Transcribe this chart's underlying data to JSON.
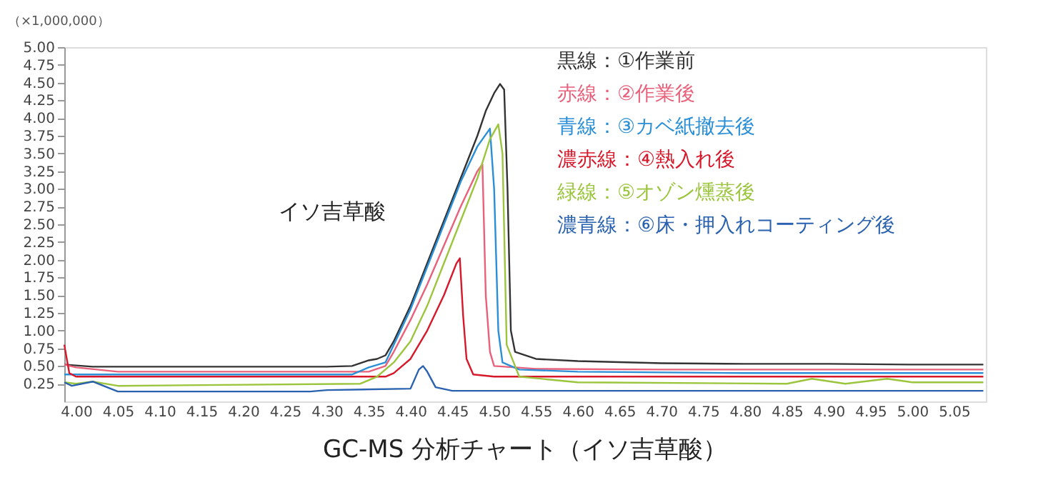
{
  "chart_data": {
    "type": "line",
    "title": "GC-MS 分析チャート（イソ吉草酸）",
    "ylabel": "（×1,000,000）",
    "annotations": [
      "イソ吉草酸"
    ],
    "xlim": [
      3.986,
      5.088
    ],
    "ylim": [
      0,
      5.0
    ],
    "xticks": [
      {
        "value": 4.0,
        "label": "4.00"
      },
      4.05,
      {
        "value": 4.1,
        "label": "4.10"
      },
      4.15,
      {
        "value": 4.2,
        "label": "4.20"
      },
      4.25,
      {
        "value": 4.3,
        "label": "4.30"
      },
      4.35,
      {
        "value": 4.4,
        "label": "4.40"
      },
      4.45,
      {
        "value": 4.5,
        "label": "4.50"
      },
      4.55,
      {
        "value": 4.6,
        "label": "4.60"
      },
      4.65,
      {
        "value": 4.7,
        "label": "4.70"
      },
      4.75,
      {
        "value": 4.8,
        "label": "4.80"
      },
      4.85,
      {
        "value": 4.9,
        "label": "4.90"
      },
      4.95,
      {
        "value": 5.0,
        "label": "5.00"
      },
      5.05
    ],
    "yticks": [
      0.25,
      {
        "value": 0.5,
        "label": "0.50"
      },
      0.75,
      {
        "value": 1.0,
        "label": "1.00"
      },
      1.25,
      {
        "value": 1.5,
        "label": "1.50"
      },
      1.75,
      {
        "value": 2.0,
        "label": "2.00"
      },
      2.25,
      {
        "value": 2.5,
        "label": "2.50"
      },
      2.75,
      {
        "value": 3.0,
        "label": "3.00"
      },
      3.25,
      {
        "value": 3.5,
        "label": "3.50"
      },
      3.75,
      {
        "value": 4.0,
        "label": "4.00"
      },
      4.25,
      {
        "value": 4.5,
        "label": "4.50"
      },
      4.75,
      {
        "value": 5.0,
        "label": "5.00"
      }
    ],
    "grid": false,
    "legend": "top right",
    "marker": "none",
    "line_style": "solid",
    "series": [
      {
        "name": "黒線：①作業前",
        "color": "#333333",
        "x": [
          3.986,
          4.02,
          4.3,
          4.33,
          4.35,
          4.36,
          4.37,
          4.38,
          4.4,
          4.42,
          4.44,
          4.46,
          4.48,
          4.49,
          4.5,
          4.507,
          4.512,
          4.516,
          4.52,
          4.525,
          4.55,
          4.6,
          4.7,
          4.8,
          4.9,
          5.0,
          5.085
        ],
        "values": [
          0.52,
          0.49,
          0.49,
          0.5,
          0.58,
          0.6,
          0.65,
          0.85,
          1.35,
          1.95,
          2.55,
          3.15,
          3.75,
          4.1,
          4.35,
          4.48,
          4.4,
          3.0,
          1.0,
          0.7,
          0.6,
          0.57,
          0.54,
          0.53,
          0.53,
          0.52,
          0.52
        ]
      },
      {
        "name": "赤線：②作業後",
        "color": "#e8607a",
        "x": [
          3.986,
          4.0,
          4.05,
          4.35,
          4.37,
          4.38,
          4.4,
          4.42,
          4.44,
          4.46,
          4.48,
          4.486,
          4.49,
          4.495,
          4.5,
          4.55,
          4.7,
          4.9,
          5.085
        ],
        "values": [
          0.52,
          0.48,
          0.42,
          0.42,
          0.5,
          0.7,
          1.15,
          1.65,
          2.2,
          2.75,
          3.25,
          3.35,
          1.5,
          0.7,
          0.5,
          0.46,
          0.45,
          0.45,
          0.45
        ]
      },
      {
        "name": "青線：③カベ紙撤去後",
        "color": "#2a8fd6",
        "x": [
          3.986,
          4.02,
          4.33,
          4.35,
          4.37,
          4.38,
          4.4,
          4.42,
          4.44,
          4.46,
          4.48,
          4.495,
          4.5,
          4.505,
          4.51,
          4.53,
          4.6,
          4.8,
          5.085
        ],
        "values": [
          0.38,
          0.38,
          0.38,
          0.48,
          0.55,
          0.8,
          1.3,
          1.9,
          2.5,
          3.1,
          3.6,
          3.85,
          3.0,
          1.0,
          0.55,
          0.45,
          0.42,
          0.4,
          0.4
        ]
      },
      {
        "name": "濃赤線：④熱入れ後",
        "color": "#d7182a",
        "x": [
          3.986,
          3.992,
          4.0,
          4.37,
          4.38,
          4.4,
          4.42,
          4.44,
          4.455,
          4.459,
          4.463,
          4.467,
          4.475,
          4.5,
          4.7,
          5.085
        ],
        "values": [
          0.8,
          0.4,
          0.35,
          0.35,
          0.4,
          0.6,
          1.0,
          1.5,
          1.95,
          2.02,
          1.2,
          0.6,
          0.38,
          0.35,
          0.35,
          0.35
        ]
      },
      {
        "name": "緑線：⑤オゾン燻蒸後",
        "color": "#9bc53d",
        "x": [
          3.986,
          4.0,
          4.02,
          4.05,
          4.34,
          4.36,
          4.38,
          4.4,
          4.42,
          4.44,
          4.46,
          4.48,
          4.495,
          4.505,
          4.51,
          4.515,
          4.53,
          4.6,
          4.85,
          4.88,
          4.92,
          4.97,
          5.0,
          5.085
        ],
        "values": [
          0.27,
          0.25,
          0.28,
          0.22,
          0.25,
          0.35,
          0.55,
          0.85,
          1.35,
          1.95,
          2.55,
          3.15,
          3.7,
          3.91,
          3.5,
          0.8,
          0.35,
          0.27,
          0.25,
          0.32,
          0.25,
          0.32,
          0.27,
          0.27
        ]
      },
      {
        "name": "濃青線：⑥床・押入れコーティング後",
        "color": "#2a62b0",
        "x": [
          3.986,
          3.995,
          4.02,
          4.05,
          4.28,
          4.3,
          4.4,
          4.41,
          4.415,
          4.42,
          4.43,
          4.45,
          4.6,
          4.8,
          5.0,
          5.085
        ],
        "values": [
          0.27,
          0.22,
          0.28,
          0.14,
          0.14,
          0.16,
          0.18,
          0.45,
          0.5,
          0.42,
          0.2,
          0.15,
          0.15,
          0.15,
          0.15,
          0.15
        ]
      }
    ]
  }
}
